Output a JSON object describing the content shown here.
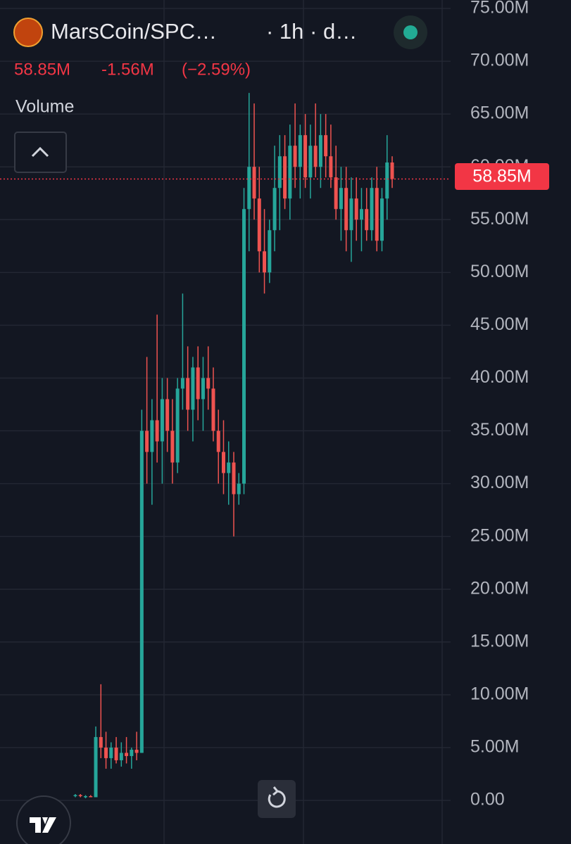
{
  "header": {
    "symbol": "MarsCoin/SPC…",
    "interval": "· 1h · d…",
    "price": "58.85M",
    "change": "-1.56M",
    "change_pct": "(−2.59%)",
    "indicator": "Volume"
  },
  "chart_data": {
    "type": "candlestick",
    "open": [
      0.4,
      0.5,
      0.4,
      0.4,
      0.3,
      6.0,
      5.0,
      4.0,
      5.0,
      3.8,
      4.5,
      4.2,
      4.8,
      4.5,
      35.0,
      33.0,
      36.0,
      34.0,
      38.0,
      35.0,
      32.0,
      39.0,
      40.0,
      37.0,
      41.0,
      38.0,
      40.0,
      39.0,
      35.0,
      33.0,
      31.0,
      32.0,
      29.0,
      30.0,
      56.0,
      60.0,
      57.0,
      52.0,
      50.0,
      54.0,
      58.0,
      61.0,
      57.0,
      62.0,
      60.0,
      63.0,
      59.0,
      62.0,
      60.0,
      63.0,
      61.0,
      59.0,
      56.0,
      58.0,
      54.0,
      57.0,
      55.0,
      56.0,
      54.0,
      58.0,
      53.0,
      57.0,
      60.41
    ],
    "high": [
      0.6,
      0.6,
      0.5,
      0.5,
      7.0,
      11.0,
      6.5,
      5.5,
      6.0,
      5.5,
      6.0,
      5.0,
      6.5,
      37.0,
      42.0,
      38.0,
      46.0,
      40.0,
      40.0,
      38.0,
      40.0,
      48.0,
      43.0,
      42.0,
      43.0,
      42.0,
      43.0,
      41.0,
      37.0,
      36.0,
      34.0,
      33.0,
      31.0,
      58.0,
      67.0,
      66.0,
      60.0,
      56.0,
      55.0,
      62.0,
      63.0,
      63.0,
      64.0,
      66.0,
      64.0,
      65.0,
      64.0,
      66.0,
      65.0,
      65.0,
      64.0,
      62.0,
      60.0,
      60.0,
      59.0,
      59.0,
      58.0,
      58.0,
      59.0,
      60.0,
      58.0,
      63.0,
      61.0
    ],
    "low": [
      0.3,
      0.3,
      0.2,
      0.3,
      0.3,
      4.0,
      3.0,
      3.0,
      3.5,
      3.2,
      3.5,
      3.0,
      3.8,
      4.5,
      30.0,
      28.0,
      32.0,
      30.0,
      33.0,
      30.0,
      31.0,
      37.0,
      35.0,
      34.0,
      36.0,
      35.0,
      37.0,
      34.0,
      30.0,
      29.0,
      28.0,
      25.0,
      28.0,
      29.0,
      52.0,
      55.0,
      50.0,
      48.0,
      49.0,
      52.0,
      54.0,
      56.0,
      55.0,
      58.0,
      57.0,
      58.0,
      57.0,
      59.0,
      58.0,
      59.0,
      58.0,
      55.0,
      53.0,
      52.0,
      51.0,
      53.0,
      52.0,
      53.0,
      53.0,
      52.0,
      52.0,
      55.0,
      58.0
    ],
    "close": [
      0.5,
      0.4,
      0.4,
      0.3,
      6.0,
      5.0,
      4.0,
      5.0,
      3.8,
      4.5,
      4.2,
      4.8,
      4.5,
      35.0,
      33.0,
      36.0,
      34.0,
      38.0,
      35.0,
      32.0,
      39.0,
      40.0,
      37.0,
      41.0,
      38.0,
      40.0,
      39.0,
      35.0,
      33.0,
      31.0,
      32.0,
      29.0,
      30.0,
      56.0,
      60.0,
      57.0,
      52.0,
      50.0,
      54.0,
      58.0,
      61.0,
      57.0,
      62.0,
      60.0,
      63.0,
      59.0,
      62.0,
      60.0,
      63.0,
      61.0,
      59.0,
      56.0,
      58.0,
      54.0,
      57.0,
      55.0,
      56.0,
      54.0,
      58.0,
      53.0,
      57.0,
      60.41,
      58.85
    ],
    "up_color": "#26a69a",
    "down_color": "#ef5350",
    "ylim": [
      0,
      75
    ],
    "yticks": [
      {
        "value": 0,
        "label": "0.00"
      },
      {
        "value": 5,
        "label": "5.00M"
      },
      {
        "value": 10,
        "label": "10.00M"
      },
      {
        "value": 15,
        "label": "15.00M"
      },
      {
        "value": 20,
        "label": "20.00M"
      },
      {
        "value": 25,
        "label": "25.00M"
      },
      {
        "value": 30,
        "label": "30.00M"
      },
      {
        "value": 35,
        "label": "35.00M"
      },
      {
        "value": 40,
        "label": "40.00M"
      },
      {
        "value": 45,
        "label": "45.00M"
      },
      {
        "value": 50,
        "label": "50.00M"
      },
      {
        "value": 55,
        "label": "55.00M"
      },
      {
        "value": 60,
        "label": "60.00M"
      },
      {
        "value": 65,
        "label": "65.00M"
      },
      {
        "value": 70,
        "label": "70.00M"
      },
      {
        "value": 75,
        "label": "75.00M"
      }
    ],
    "grid": true
  }
}
